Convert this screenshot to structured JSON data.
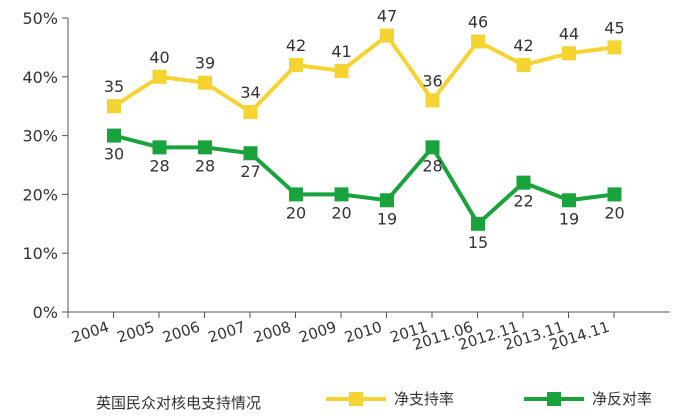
{
  "chart_data": {
    "type": "line",
    "categories": [
      "2004",
      "2005",
      "2006",
      "2007",
      "2008",
      "2009",
      "2010",
      "2011",
      "2011.06",
      "2012.11",
      "2013.11",
      "2014.11"
    ],
    "series": [
      {
        "name": "净支持率",
        "color": "#f5d330",
        "values": [
          35,
          40,
          39,
          34,
          42,
          41,
          47,
          36,
          46,
          42,
          44,
          45
        ]
      },
      {
        "name": "净反对率",
        "color": "#1aa33c",
        "values": [
          30,
          28,
          28,
          27,
          20,
          20,
          19,
          28,
          15,
          22,
          19,
          20
        ]
      }
    ],
    "data_labels": {
      "support": [
        "35",
        "40",
        "39",
        "34",
        "42",
        "41",
        "47",
        "36",
        "46",
        "42",
        "44",
        "45"
      ],
      "oppose": [
        "30",
        "28",
        "28",
        "27",
        "20",
        "20",
        "19",
        "28",
        "15",
        "22",
        "19",
        "20"
      ]
    },
    "yticks": [
      "0%",
      "10%",
      "20%",
      "30%",
      "40%",
      "50%"
    ],
    "ylim": [
      0,
      50
    ],
    "grid": false,
    "legend_title": "英国民众对核电支持情况",
    "legend_position": "bottom"
  }
}
